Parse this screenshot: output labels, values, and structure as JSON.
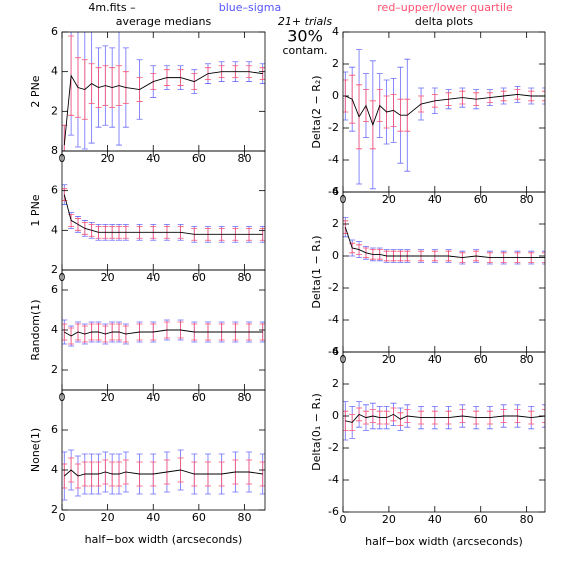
{
  "header": {
    "file": "4m.fits  –",
    "sigma_note": "blue–sigma",
    "quartile_note": "red–upper/lower quartile",
    "trials": "21+ trials",
    "percent": "30%",
    "contam": "contam."
  },
  "chart_data": [
    {
      "type": "line",
      "title": "average medians",
      "ylabel": "2 PNe",
      "x": [
        1,
        4,
        7,
        10,
        13,
        16,
        19,
        22,
        25,
        28,
        34,
        40,
        46,
        52,
        58,
        64,
        70,
        76,
        82,
        88
      ],
      "values": [
        0.3,
        3.8,
        3.2,
        3.1,
        3.4,
        3.2,
        3.3,
        3.2,
        3.3,
        3.2,
        3.1,
        3.5,
        3.7,
        3.7,
        3.5,
        3.9,
        4.0,
        4.0,
        4.0,
        3.9
      ],
      "sigma": [
        1,
        3,
        3,
        3,
        3,
        2,
        2,
        2,
        3,
        2,
        1.5,
        0.8,
        0.6,
        0.6,
        0.6,
        0.5,
        0.5,
        0.5,
        0.5,
        0.5
      ],
      "quartile": [
        1,
        2,
        1.5,
        1.5,
        1,
        1,
        1,
        1,
        1,
        0.8,
        0.6,
        0.4,
        0.4,
        0.4,
        0.4,
        0.3,
        0.3,
        0.3,
        0.3,
        0.3
      ],
      "xlim": [
        0,
        89
      ],
      "ylim": [
        0,
        6
      ],
      "xticks": [
        0,
        20,
        40,
        60,
        80
      ],
      "yticks": [
        2,
        4,
        6
      ],
      "line_color": "#000000",
      "sigma_color": "#6b6bff",
      "quartile_color": "#ff4f6f"
    },
    {
      "type": "line",
      "ylabel": "1 PNe",
      "x": [
        1,
        4,
        7,
        10,
        13,
        16,
        19,
        22,
        25,
        28,
        34,
        40,
        46,
        52,
        58,
        64,
        70,
        76,
        82,
        88
      ],
      "values": [
        5.8,
        4.5,
        4.3,
        4.1,
        4.0,
        3.9,
        3.9,
        3.9,
        3.9,
        3.9,
        3.9,
        3.9,
        3.9,
        3.9,
        3.8,
        3.8,
        3.8,
        3.8,
        3.8,
        3.8
      ],
      "sigma": [
        0.5,
        0.4,
        0.4,
        0.4,
        0.4,
        0.4,
        0.4,
        0.4,
        0.4,
        0.4,
        0.4,
        0.4,
        0.4,
        0.4,
        0.4,
        0.4,
        0.4,
        0.4,
        0.4,
        0.4
      ],
      "quartile": [
        0.3,
        0.3,
        0.3,
        0.3,
        0.3,
        0.3,
        0.3,
        0.3,
        0.3,
        0.3,
        0.3,
        0.3,
        0.3,
        0.3,
        0.3,
        0.3,
        0.3,
        0.3,
        0.3,
        0.3
      ],
      "xlim": [
        0,
        89
      ],
      "ylim": [
        2,
        8
      ],
      "xticks": [
        0,
        20,
        40,
        60,
        80
      ],
      "yticks": [
        2,
        4,
        6,
        8
      ],
      "line_color": "#000000",
      "sigma_color": "#6b6bff",
      "quartile_color": "#ff4f6f"
    },
    {
      "type": "line",
      "ylabel": "Random(1)",
      "x": [
        1,
        4,
        7,
        10,
        13,
        16,
        19,
        22,
        25,
        28,
        34,
        40,
        46,
        52,
        58,
        64,
        70,
        76,
        82,
        88
      ],
      "values": [
        3.9,
        3.7,
        3.9,
        3.8,
        3.9,
        3.9,
        3.8,
        3.9,
        3.9,
        3.8,
        3.9,
        3.9,
        4.0,
        4.0,
        3.9,
        3.9,
        3.9,
        3.9,
        3.9,
        3.9
      ],
      "sigma": [
        0.6,
        0.5,
        0.5,
        0.5,
        0.5,
        0.5,
        0.5,
        0.5,
        0.5,
        0.5,
        0.5,
        0.5,
        0.5,
        0.5,
        0.5,
        0.5,
        0.5,
        0.5,
        0.5,
        0.5
      ],
      "quartile": [
        0.4,
        0.4,
        0.4,
        0.4,
        0.4,
        0.4,
        0.4,
        0.4,
        0.4,
        0.4,
        0.4,
        0.4,
        0.4,
        0.4,
        0.4,
        0.4,
        0.4,
        0.4,
        0.4,
        0.4
      ],
      "xlim": [
        0,
        89
      ],
      "ylim": [
        1,
        7
      ],
      "xticks": [
        0,
        20,
        40,
        60,
        80
      ],
      "yticks": [
        2,
        4,
        6
      ],
      "line_color": "#000000",
      "sigma_color": "#6b6bff",
      "quartile_color": "#ff4f6f"
    },
    {
      "type": "line",
      "ylabel": "None(1)",
      "xlabel": "half−box width (arcseconds)",
      "x": [
        1,
        4,
        7,
        10,
        13,
        16,
        19,
        22,
        25,
        28,
        34,
        40,
        46,
        52,
        58,
        64,
        70,
        76,
        82,
        88
      ],
      "values": [
        3.7,
        4.0,
        3.7,
        3.8,
        3.8,
        3.8,
        3.9,
        3.8,
        3.8,
        3.9,
        3.8,
        3.8,
        3.9,
        4.0,
        3.8,
        3.8,
        3.8,
        3.9,
        3.9,
        3.8
      ],
      "sigma": [
        1.2,
        1.0,
        1.0,
        1.0,
        1.0,
        1.0,
        1.0,
        1.0,
        1.0,
        1.0,
        1.0,
        1.0,
        1.0,
        1.0,
        1.0,
        1.0,
        1.0,
        1.0,
        1.0,
        1.0
      ],
      "quartile": [
        0.6,
        0.6,
        0.6,
        0.6,
        0.6,
        0.6,
        0.6,
        0.6,
        0.6,
        0.6,
        0.6,
        0.6,
        0.6,
        0.6,
        0.6,
        0.6,
        0.6,
        0.6,
        0.6,
        0.6
      ],
      "xlim": [
        0,
        89
      ],
      "ylim": [
        2,
        8
      ],
      "xticks": [
        0,
        20,
        40,
        60,
        80
      ],
      "yticks": [
        2,
        4,
        6
      ],
      "line_color": "#000000",
      "sigma_color": "#6b6bff",
      "quartile_color": "#ff4f6f"
    },
    {
      "type": "line",
      "title": "delta plots",
      "ylabel": "Delta(2 − R₂)",
      "x": [
        1,
        4,
        7,
        10,
        13,
        16,
        19,
        22,
        25,
        28,
        34,
        40,
        46,
        52,
        58,
        64,
        70,
        76,
        82,
        88
      ],
      "values": [
        0,
        -0.2,
        -1.3,
        -0.6,
        -1.8,
        -0.6,
        -1.0,
        -0.9,
        -1.2,
        -1.2,
        -0.5,
        -0.3,
        -0.2,
        -0.1,
        -0.2,
        -0.1,
        0,
        0.1,
        0,
        0
      ],
      "sigma": [
        1.5,
        2,
        4.2,
        2,
        4,
        2,
        2,
        2,
        3,
        3.5,
        1,
        0.8,
        0.6,
        0.6,
        0.6,
        0.5,
        0.5,
        0.5,
        0.5,
        0.5
      ],
      "quartile": [
        1,
        1.5,
        2,
        1,
        1.5,
        1,
        1,
        1,
        1,
        1,
        0.5,
        0.4,
        0.4,
        0.4,
        0.4,
        0.3,
        0.3,
        0.3,
        0.3,
        0.3
      ],
      "xlim": [
        0,
        88
      ],
      "ylim": [
        -6,
        4
      ],
      "xticks": [
        0,
        20,
        40,
        60,
        80
      ],
      "yticks": [
        -6,
        -4,
        -2,
        0,
        2,
        4
      ],
      "line_color": "#000000",
      "sigma_color": "#6b6bff",
      "quartile_color": "#ff4f6f"
    },
    {
      "type": "line",
      "ylabel": "Delta(1 − R₁)",
      "x": [
        1,
        4,
        7,
        10,
        13,
        16,
        19,
        22,
        25,
        28,
        34,
        40,
        46,
        52,
        58,
        64,
        70,
        76,
        82,
        88
      ],
      "values": [
        1.8,
        0.5,
        0.4,
        0.2,
        0.1,
        0.1,
        0,
        0,
        0,
        0,
        0,
        0,
        0,
        -0.1,
        0,
        -0.1,
        -0.1,
        -0.1,
        -0.1,
        -0.1
      ],
      "sigma": [
        0.6,
        0.5,
        0.5,
        0.4,
        0.4,
        0.4,
        0.4,
        0.4,
        0.4,
        0.4,
        0.4,
        0.4,
        0.4,
        0.4,
        0.4,
        0.4,
        0.4,
        0.4,
        0.4,
        0.4
      ],
      "quartile": [
        0.4,
        0.3,
        0.3,
        0.3,
        0.3,
        0.3,
        0.3,
        0.3,
        0.3,
        0.3,
        0.3,
        0.3,
        0.3,
        0.3,
        0.3,
        0.3,
        0.3,
        0.3,
        0.3,
        0.3
      ],
      "xlim": [
        0,
        88
      ],
      "ylim": [
        -6,
        4
      ],
      "xticks": [
        0,
        20,
        40,
        60,
        80
      ],
      "yticks": [
        -6,
        -4,
        -2,
        0,
        2,
        4
      ],
      "line_color": "#000000",
      "sigma_color": "#6b6bff",
      "quartile_color": "#ff4f6f"
    },
    {
      "type": "line",
      "ylabel": "Delta(0₁ − R₁)",
      "xlabel": "half−box width (arcseconds)",
      "x": [
        1,
        4,
        7,
        10,
        13,
        16,
        19,
        22,
        25,
        28,
        34,
        40,
        46,
        52,
        58,
        64,
        70,
        76,
        82,
        88
      ],
      "values": [
        -0.3,
        -0.4,
        0.1,
        -0.1,
        0,
        -0.1,
        -0.1,
        0.1,
        -0.2,
        0,
        -0.1,
        -0.1,
        -0.1,
        0,
        -0.1,
        -0.1,
        0,
        0,
        -0.1,
        0
      ],
      "sigma": [
        1.2,
        1,
        0.8,
        0.8,
        0.8,
        0.7,
        0.7,
        0.7,
        0.7,
        0.7,
        0.7,
        0.7,
        0.7,
        0.7,
        0.7,
        0.7,
        0.7,
        0.7,
        0.7,
        0.7
      ],
      "quartile": [
        0.6,
        0.5,
        0.4,
        0.4,
        0.4,
        0.4,
        0.4,
        0.4,
        0.4,
        0.4,
        0.4,
        0.4,
        0.4,
        0.4,
        0.4,
        0.4,
        0.4,
        0.4,
        0.4,
        0.4
      ],
      "xlim": [
        0,
        88
      ],
      "ylim": [
        -6,
        4
      ],
      "xticks": [
        0,
        20,
        40,
        60,
        80
      ],
      "yticks": [
        -6,
        -4,
        -2,
        0,
        2,
        4
      ],
      "line_color": "#000000",
      "sigma_color": "#6b6bff",
      "quartile_color": "#ff4f6f"
    }
  ]
}
